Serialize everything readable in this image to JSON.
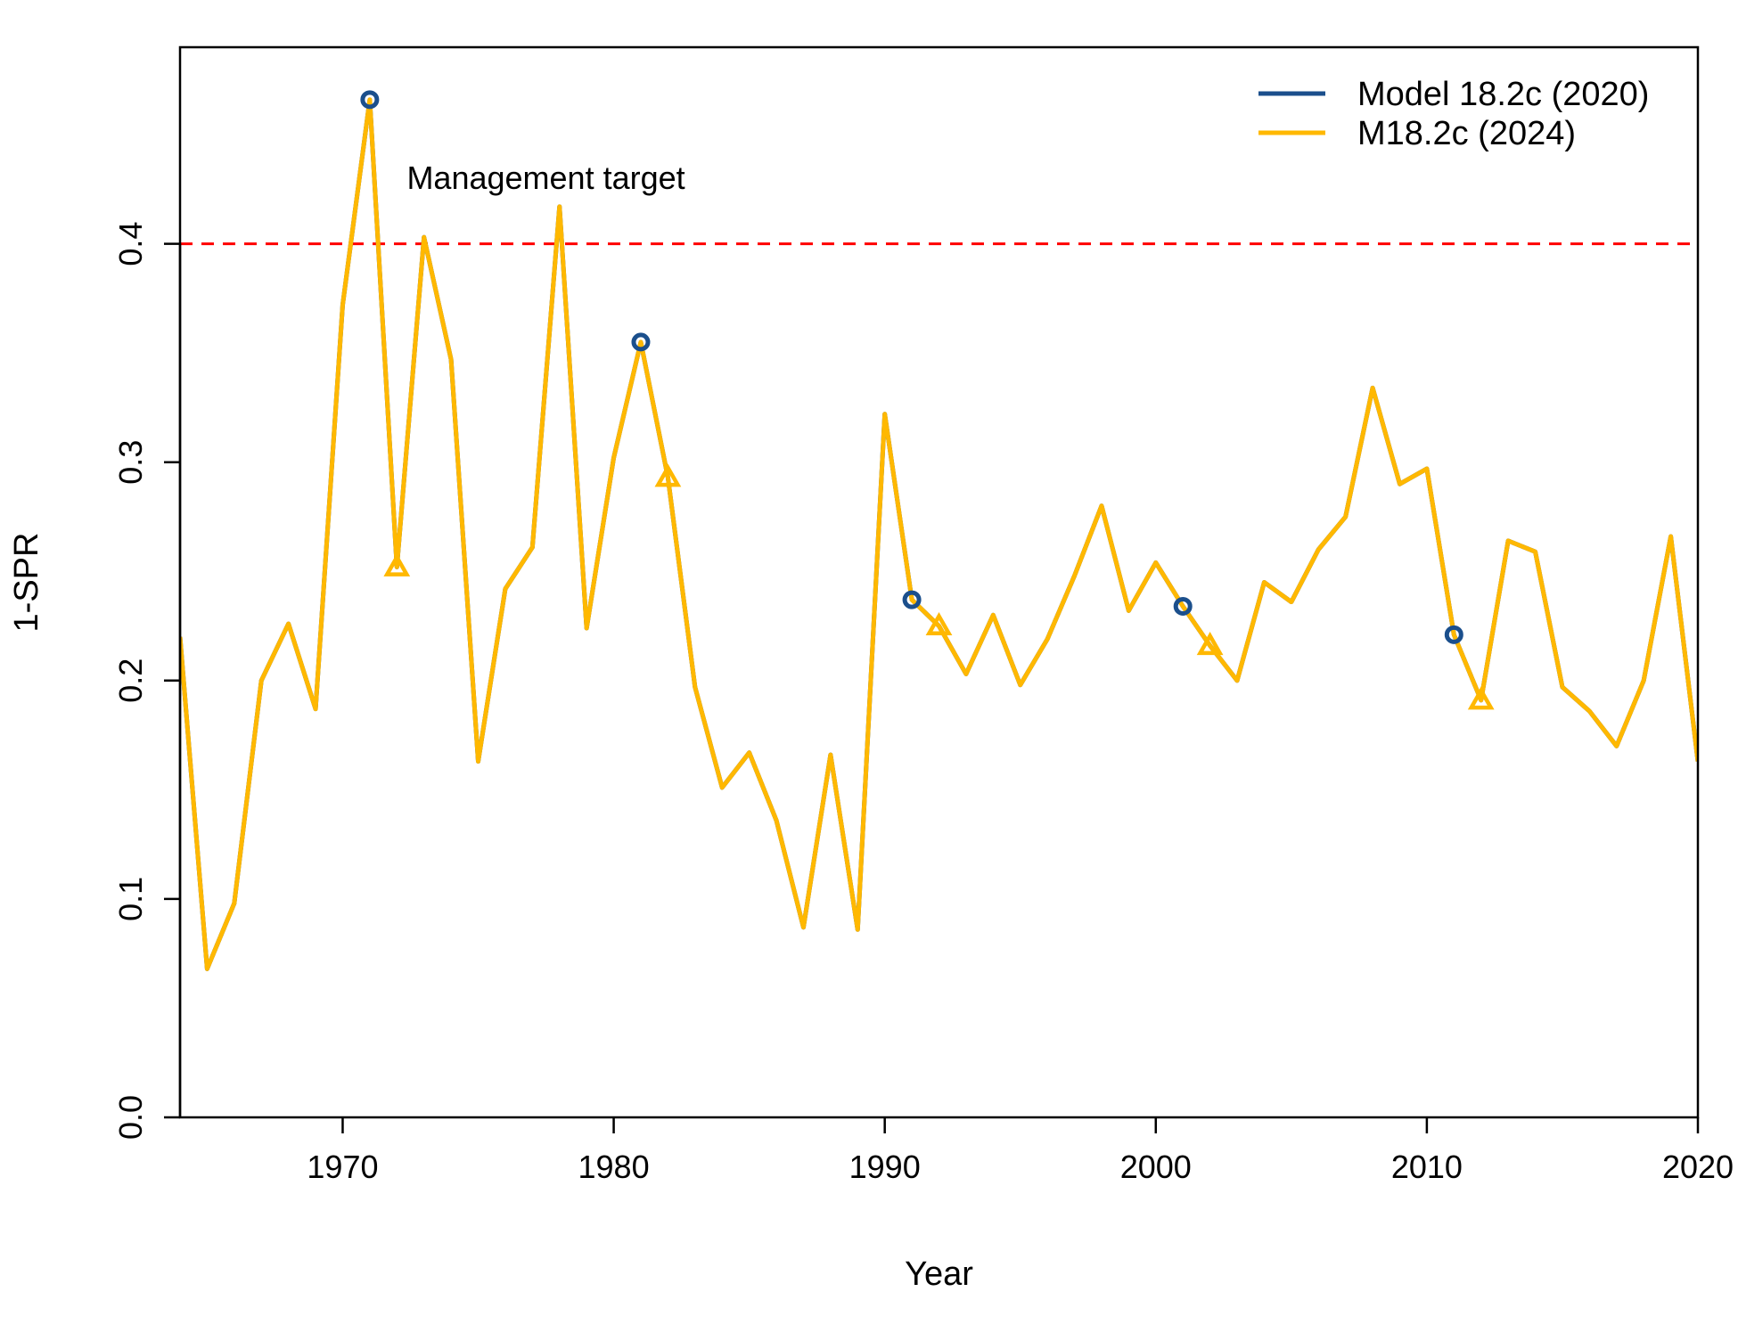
{
  "chart_data": {
    "type": "line",
    "xlabel": "Year",
    "ylabel": "1-SPR",
    "xlim": [
      1964,
      2020
    ],
    "ylim": [
      0,
      0.49
    ],
    "x_ticks": [
      1970,
      1980,
      1990,
      2000,
      2010,
      2020
    ],
    "y_ticks": [
      0.0,
      0.1,
      0.2,
      0.3,
      0.4
    ],
    "y_tick_labels": [
      "0.0",
      "0.1",
      "0.2",
      "0.3",
      "0.4"
    ],
    "reference_line": {
      "y": 0.4,
      "label": "Management target",
      "label_x": 1977.5,
      "label_y": 0.43,
      "color": "#ff0000",
      "style": "dashed"
    },
    "legend": {
      "position": "top-right"
    },
    "series": [
      {
        "name": "Model 18.2c (2020)",
        "color": "#1b4f8c",
        "marker": "circle",
        "marker_years": [
          1971,
          1981,
          1991,
          2001,
          2011
        ],
        "x": [
          1964,
          1965,
          1966,
          1967,
          1968,
          1969,
          1970,
          1971,
          1972,
          1973,
          1974,
          1975,
          1976,
          1977,
          1978,
          1979,
          1980,
          1981,
          1982,
          1983,
          1984,
          1985,
          1986,
          1987,
          1988,
          1989,
          1990,
          1991,
          1992,
          1993,
          1994,
          1995,
          1996,
          1997,
          1998,
          1999,
          2000,
          2001,
          2002,
          2003,
          2004,
          2005,
          2006,
          2007,
          2008,
          2009,
          2010,
          2011,
          2012,
          2013,
          2014,
          2015,
          2016,
          2017,
          2018,
          2019,
          2020
        ],
        "values": [
          0.22,
          0.068,
          0.098,
          0.2,
          0.226,
          0.187,
          0.372,
          0.466,
          0.252,
          0.403,
          0.347,
          0.163,
          0.242,
          0.261,
          0.417,
          0.224,
          0.302,
          0.355,
          0.293,
          0.197,
          0.151,
          0.167,
          0.136,
          0.087,
          0.166,
          0.086,
          0.322,
          0.237,
          0.225,
          0.203,
          0.23,
          0.198,
          0.219,
          0.248,
          0.28,
          0.232,
          0.254,
          0.234,
          0.216,
          0.2,
          0.245,
          0.236,
          0.26,
          0.275,
          0.334,
          0.29,
          0.297,
          0.221,
          0.191,
          0.264,
          0.259,
          0.197,
          0.186,
          0.17,
          0.2,
          0.266,
          0.163
        ]
      },
      {
        "name": "M18.2c (2024)",
        "color": "#ffb800",
        "marker": "triangle",
        "marker_years": [
          1972,
          1982,
          1992,
          2002,
          2012
        ],
        "x": [
          1964,
          1965,
          1966,
          1967,
          1968,
          1969,
          1970,
          1971,
          1972,
          1973,
          1974,
          1975,
          1976,
          1977,
          1978,
          1979,
          1980,
          1981,
          1982,
          1983,
          1984,
          1985,
          1986,
          1987,
          1988,
          1989,
          1990,
          1991,
          1992,
          1993,
          1994,
          1995,
          1996,
          1997,
          1998,
          1999,
          2000,
          2001,
          2002,
          2003,
          2004,
          2005,
          2006,
          2007,
          2008,
          2009,
          2010,
          2011,
          2012,
          2013,
          2014,
          2015,
          2016,
          2017,
          2018,
          2019,
          2020
        ],
        "values": [
          0.22,
          0.068,
          0.098,
          0.2,
          0.226,
          0.187,
          0.372,
          0.466,
          0.252,
          0.403,
          0.347,
          0.163,
          0.242,
          0.261,
          0.417,
          0.224,
          0.302,
          0.355,
          0.293,
          0.197,
          0.151,
          0.167,
          0.136,
          0.087,
          0.166,
          0.086,
          0.322,
          0.237,
          0.225,
          0.203,
          0.23,
          0.198,
          0.219,
          0.248,
          0.28,
          0.232,
          0.254,
          0.234,
          0.216,
          0.2,
          0.245,
          0.236,
          0.26,
          0.275,
          0.334,
          0.29,
          0.297,
          0.221,
          0.191,
          0.264,
          0.259,
          0.197,
          0.186,
          0.17,
          0.2,
          0.266,
          0.163
        ]
      }
    ]
  }
}
